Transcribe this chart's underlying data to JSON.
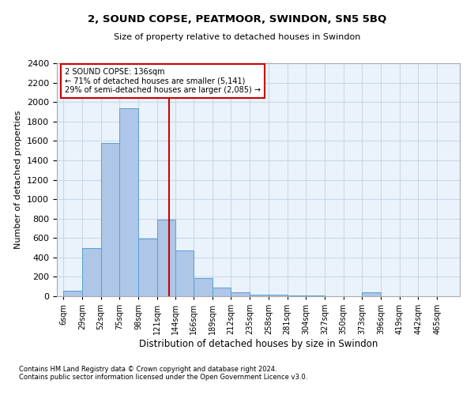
{
  "title": "2, SOUND COPSE, PEATMOOR, SWINDON, SN5 5BQ",
  "subtitle": "Size of property relative to detached houses in Swindon",
  "xlabel": "Distribution of detached houses by size in Swindon",
  "ylabel": "Number of detached properties",
  "categories": [
    "6sqm",
    "29sqm",
    "52sqm",
    "75sqm",
    "98sqm",
    "121sqm",
    "144sqm",
    "166sqm",
    "189sqm",
    "212sqm",
    "235sqm",
    "258sqm",
    "281sqm",
    "304sqm",
    "327sqm",
    "350sqm",
    "373sqm",
    "396sqm",
    "419sqm",
    "442sqm",
    "465sqm"
  ],
  "values": [
    55,
    500,
    1580,
    1940,
    590,
    790,
    470,
    185,
    90,
    40,
    20,
    15,
    5,
    5,
    0,
    0,
    40,
    0,
    0,
    0,
    0
  ],
  "bar_color": "#aec6e8",
  "bar_edge_color": "#5a9fd4",
  "grid_color": "#c8d8e8",
  "background_color": "#eaf3fb",
  "property_line_color": "#cc0000",
  "annotation_text": "2 SOUND COPSE: 136sqm\n← 71% of detached houses are smaller (5,141)\n29% of semi-detached houses are larger (2,085) →",
  "annotation_box_color": "#cc0000",
  "ylim": [
    0,
    2400
  ],
  "yticks": [
    0,
    200,
    400,
    600,
    800,
    1000,
    1200,
    1400,
    1600,
    1800,
    2000,
    2200,
    2400
  ],
  "footnote1": "Contains HM Land Registry data © Crown copyright and database right 2024.",
  "footnote2": "Contains public sector information licensed under the Open Government Licence v3.0.",
  "bin_edges": [
    6,
    29,
    52,
    75,
    98,
    121,
    144,
    166,
    189,
    212,
    235,
    258,
    281,
    304,
    327,
    350,
    373,
    396,
    419,
    442,
    465,
    488
  ]
}
